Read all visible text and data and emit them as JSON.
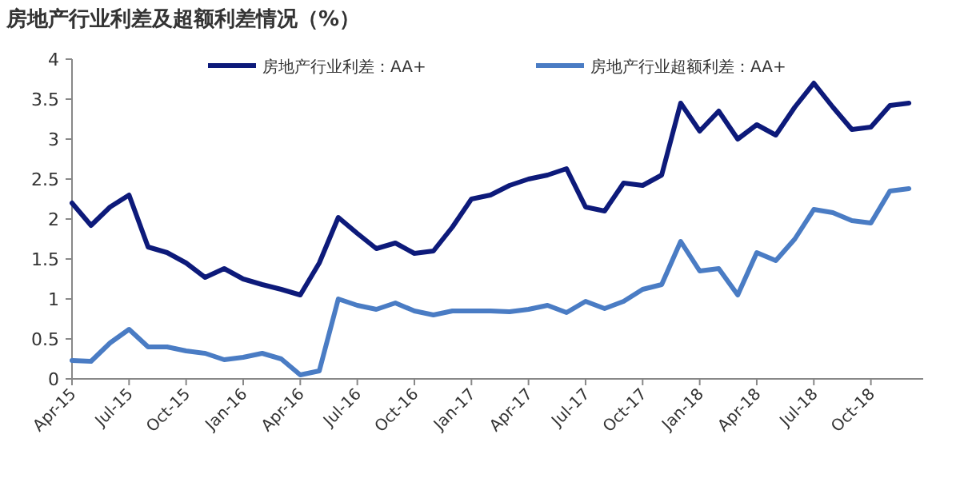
{
  "chart_data": {
    "type": "line",
    "title": "房地产行业利差及超额利差情况（%）",
    "categories": [
      "Apr-15",
      null,
      null,
      "Jul-15",
      null,
      null,
      "Oct-15",
      null,
      null,
      "Jan-16",
      null,
      null,
      "Apr-16",
      null,
      null,
      "Jul-16",
      null,
      null,
      "Oct-16",
      null,
      null,
      "Jan-17",
      null,
      null,
      "Apr-17",
      null,
      null,
      "Jul-17",
      null,
      null,
      "Oct-17",
      null,
      null,
      "Jan-18",
      null,
      null,
      "Apr-18",
      null,
      null,
      "Jul-18",
      null,
      null,
      "Oct-18",
      null,
      null
    ],
    "series": [
      {
        "name": "房地产行业利差：AA+",
        "color": "#0d1a7a",
        "values": [
          2.2,
          1.92,
          2.15,
          2.3,
          1.65,
          1.58,
          1.45,
          1.27,
          1.38,
          1.25,
          1.18,
          1.12,
          1.05,
          1.45,
          2.02,
          1.82,
          1.63,
          1.7,
          1.57,
          1.6,
          1.9,
          2.25,
          2.3,
          2.42,
          2.5,
          2.55,
          2.63,
          2.15,
          2.1,
          2.45,
          2.42,
          2.55,
          3.45,
          3.1,
          3.35,
          3.0,
          3.18,
          3.05,
          3.4,
          3.7,
          3.4,
          3.12,
          3.15,
          3.42,
          3.45
        ]
      },
      {
        "name": "房地产行业超额利差：AA+",
        "color": "#4a7cc4",
        "values": [
          0.23,
          0.22,
          0.45,
          0.62,
          0.4,
          0.4,
          0.35,
          0.32,
          0.24,
          0.27,
          0.32,
          0.25,
          0.05,
          0.1,
          1.0,
          0.92,
          0.87,
          0.95,
          0.85,
          0.8,
          0.85,
          0.85,
          0.85,
          0.84,
          0.87,
          0.92,
          0.83,
          0.97,
          0.88,
          0.97,
          1.12,
          1.18,
          1.72,
          1.35,
          1.38,
          1.05,
          1.58,
          1.48,
          1.75,
          2.12,
          2.08,
          1.98,
          1.95,
          2.35,
          2.38
        ]
      }
    ],
    "ylim": [
      0,
      4
    ],
    "yticks": [
      0,
      0.5,
      1,
      1.5,
      2,
      2.5,
      3,
      3.5,
      4
    ],
    "legend": "top",
    "marker": "none",
    "line_style": "solid"
  }
}
